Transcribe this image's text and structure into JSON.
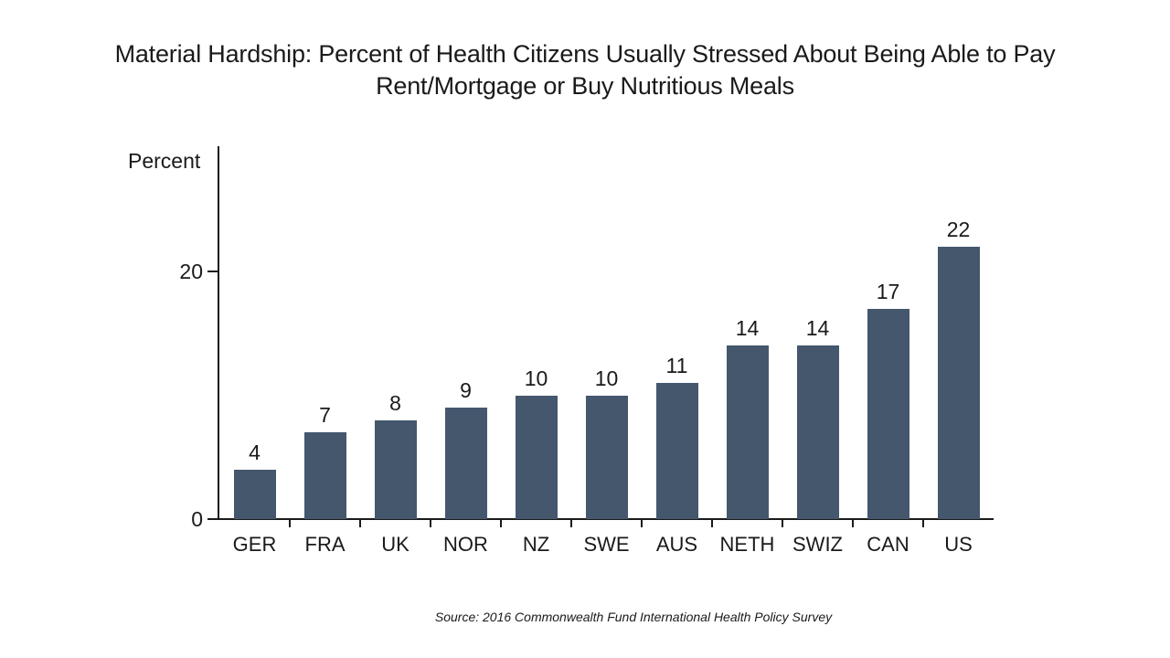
{
  "title": "Material Hardship: Percent of Health Citizens Usually Stressed About Being Able to Pay Rent/Mortgage or Buy Nutritious Meals",
  "source": "Source: 2016 Commonwealth Fund International Health Policy Survey",
  "colors": {
    "bar": "#44576D",
    "text": "#1a1a1a",
    "axis": "#1a1a1a",
    "background": "#ffffff"
  },
  "chart_data": {
    "type": "bar",
    "title": "Material Hardship: Percent of Health Citizens Usually Stressed About Being Able to Pay Rent/Mortgage or Buy Nutritious Meals",
    "categories": [
      "GER",
      "FRA",
      "UK",
      "NOR",
      "NZ",
      "SWE",
      "AUS",
      "NETH",
      "SWIZ",
      "CAN",
      "US"
    ],
    "values": [
      4,
      7,
      8,
      9,
      10,
      10,
      11,
      14,
      14,
      17,
      22
    ],
    "xlabel": "",
    "ylabel": "Percent",
    "ylim": [
      0,
      30
    ],
    "yticks": [
      0,
      20
    ],
    "grid": false,
    "legend_position": "none",
    "data_labels": true,
    "source": "Source: 2016 Commonwealth Fund International Health Policy Survey"
  }
}
